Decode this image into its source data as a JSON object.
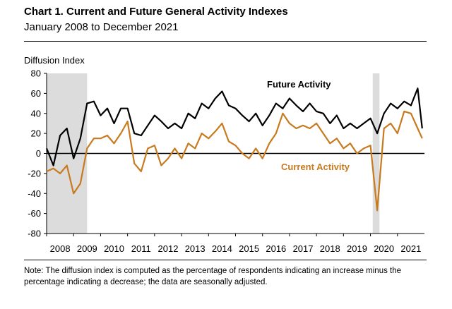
{
  "title": "Chart 1. Current and Future General Activity Indexes",
  "subtitle": "January 2008 to December 2021",
  "ylabel": "Diffusion Index",
  "note": "Note: The diffusion index is computed as the percentage of respondents indicating an increase minus the percentage indicating a decrease; the data are seasonally adjusted.",
  "chart_data": {
    "type": "line",
    "title": "Chart 1. Current and Future General Activity Indexes",
    "subtitle": "January 2008 to December 2021",
    "xlabel": "",
    "ylabel": "Diffusion Index",
    "xlim": [
      "2008-01",
      "2021-12"
    ],
    "ylim": [
      -80,
      80
    ],
    "yticks": [
      "80",
      "60",
      "40",
      "20",
      "0",
      "-20",
      "-40",
      "-60",
      "-80"
    ],
    "xticks": [
      "2008",
      "2009",
      "2010",
      "2011",
      "2012",
      "2013",
      "2014",
      "2015",
      "2016",
      "2017",
      "2018",
      "2019",
      "2020",
      "2021"
    ],
    "grid": false,
    "recessions": [
      {
        "start": "2008-01",
        "end": "2009-06"
      },
      {
        "start": "2020-02",
        "end": "2020-04"
      }
    ],
    "zero_line": true,
    "series": [
      {
        "name": "Future Activity",
        "color": "#000000",
        "x": [
          "2008-01",
          "2008-04",
          "2008-07",
          "2008-10",
          "2009-01",
          "2009-04",
          "2009-07",
          "2009-10",
          "2010-01",
          "2010-04",
          "2010-07",
          "2010-10",
          "2011-01",
          "2011-04",
          "2011-07",
          "2011-10",
          "2012-01",
          "2012-04",
          "2012-07",
          "2012-10",
          "2013-01",
          "2013-04",
          "2013-07",
          "2013-10",
          "2014-01",
          "2014-04",
          "2014-07",
          "2014-10",
          "2015-01",
          "2015-04",
          "2015-07",
          "2015-10",
          "2016-01",
          "2016-04",
          "2016-07",
          "2016-10",
          "2017-01",
          "2017-04",
          "2017-07",
          "2017-10",
          "2018-01",
          "2018-04",
          "2018-07",
          "2018-10",
          "2019-01",
          "2019-04",
          "2019-07",
          "2019-10",
          "2020-01",
          "2020-04",
          "2020-07",
          "2020-10",
          "2021-01",
          "2021-04",
          "2021-07",
          "2021-10",
          "2021-12"
        ],
        "values": [
          5,
          -12,
          18,
          25,
          -5,
          15,
          50,
          52,
          38,
          45,
          30,
          45,
          45,
          20,
          18,
          28,
          38,
          32,
          25,
          30,
          25,
          40,
          35,
          50,
          45,
          55,
          62,
          48,
          45,
          38,
          32,
          40,
          28,
          38,
          50,
          45,
          55,
          48,
          42,
          50,
          42,
          40,
          30,
          38,
          25,
          30,
          25,
          30,
          35,
          20,
          40,
          50,
          45,
          52,
          48,
          65,
          25
        ]
      },
      {
        "name": "Current Activity",
        "color": "#c77a1e",
        "x": [
          "2008-01",
          "2008-04",
          "2008-07",
          "2008-10",
          "2009-01",
          "2009-04",
          "2009-07",
          "2009-10",
          "2010-01",
          "2010-04",
          "2010-07",
          "2010-10",
          "2011-01",
          "2011-04",
          "2011-07",
          "2011-10",
          "2012-01",
          "2012-04",
          "2012-07",
          "2012-10",
          "2013-01",
          "2013-04",
          "2013-07",
          "2013-10",
          "2014-01",
          "2014-04",
          "2014-07",
          "2014-10",
          "2015-01",
          "2015-04",
          "2015-07",
          "2015-10",
          "2016-01",
          "2016-04",
          "2016-07",
          "2016-10",
          "2017-01",
          "2017-04",
          "2017-07",
          "2017-10",
          "2018-01",
          "2018-04",
          "2018-07",
          "2018-10",
          "2019-01",
          "2019-04",
          "2019-07",
          "2019-10",
          "2020-01",
          "2020-04",
          "2020-07",
          "2020-10",
          "2021-01",
          "2021-04",
          "2021-07",
          "2021-10",
          "2021-12"
        ],
        "values": [
          -18,
          -15,
          -20,
          -12,
          -40,
          -30,
          5,
          15,
          15,
          18,
          10,
          20,
          32,
          -10,
          -18,
          5,
          8,
          -12,
          -5,
          5,
          -5,
          10,
          5,
          20,
          15,
          22,
          30,
          12,
          8,
          0,
          -5,
          5,
          -5,
          10,
          20,
          40,
          30,
          25,
          28,
          25,
          30,
          20,
          10,
          15,
          5,
          10,
          0,
          5,
          8,
          -57,
          25,
          30,
          20,
          42,
          40,
          25,
          15
        ]
      }
    ],
    "annotations": [
      {
        "text": "Future Activity",
        "color": "#000000"
      },
      {
        "text": "Current Activity",
        "color": "#c77a1e"
      }
    ]
  }
}
